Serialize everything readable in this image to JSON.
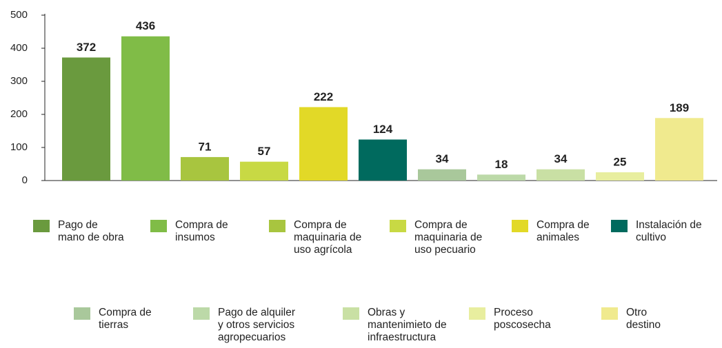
{
  "chart_data": {
    "type": "bar",
    "categories": [
      "Pago de\nmano de obra",
      "Compra de\ninsumos",
      "Compra de\nmaquinaria de\nuso agrícola",
      "Compra de\nmaquinaria de\nuso pecuario",
      "Compra de\nanimales",
      "Instalación de\ncultivo",
      "Compra de\ntierras",
      "Pago de alquiler\ny otros servicios\nagropecuarios",
      "Obras y\nmantenimieto de\ninfraestructura",
      "Proceso\nposcosecha",
      "Otro\ndestino"
    ],
    "values": [
      372,
      436,
      71,
      57,
      222,
      124,
      34,
      18,
      34,
      25,
      189
    ],
    "colors": [
      "#6a9a3e",
      "#80bc47",
      "#a8c53f",
      "#c8d944",
      "#e2d927",
      "#006a5e",
      "#a9c89b",
      "#bcd9a8",
      "#c9e0a4",
      "#e8ee9f",
      "#f0ea8e"
    ],
    "ylim": [
      0,
      500
    ],
    "yticks": [
      0,
      100,
      200,
      300,
      400,
      500
    ]
  }
}
